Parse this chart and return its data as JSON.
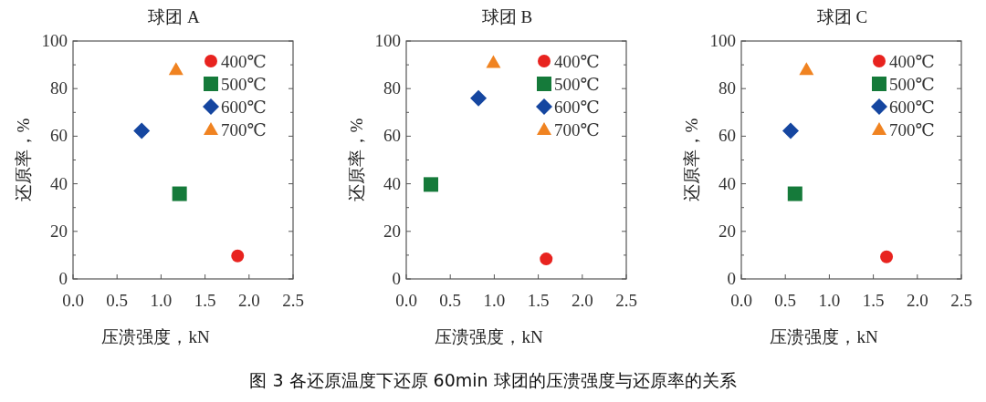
{
  "chart_data": [
    {
      "type": "scatter",
      "title": "球团 A",
      "xlabel": "压溃强度，kN",
      "ylabel": "还原率，%",
      "legend": "top right",
      "xlim": [
        0,
        2.5
      ],
      "ylim": [
        0,
        100
      ],
      "xticks": [
        {
          "value": 0,
          "label": "0.0"
        },
        0.5,
        {
          "value": 1,
          "label": "1.0"
        },
        1.5,
        {
          "value": 2,
          "label": "2.0"
        },
        2.5
      ],
      "yticks": [
        0,
        {
          "value": 10,
          "label": null
        },
        20,
        {
          "value": 30,
          "label": null
        },
        40,
        {
          "value": 50,
          "label": null
        },
        60,
        {
          "value": 70,
          "label": null
        },
        80,
        {
          "value": 90,
          "label": null
        },
        100
      ],
      "series": [
        {
          "name": "400℃",
          "color": "#e8231f",
          "marker": "circle",
          "x": [
            1.87
          ],
          "values": [
            9.7
          ]
        },
        {
          "name": "500℃",
          "color": "#157a3a",
          "marker": "square",
          "x": [
            1.21
          ],
          "values": [
            35.8
          ]
        },
        {
          "name": "600℃",
          "color": "#1546a0",
          "marker": "diamond",
          "x": [
            0.78
          ],
          "values": [
            62.3
          ]
        },
        {
          "name": "700℃",
          "color": "#f08321",
          "marker": "triangle",
          "x": [
            1.17
          ],
          "values": [
            88
          ]
        }
      ],
      "annotations": [
        "图 3   各还原温度下还原 60min 球团的压溃强度与还原率的关系"
      ]
    },
    {
      "type": "scatter",
      "title": "球团 B",
      "xlabel": "压溃强度，kN",
      "ylabel": "还原率，%",
      "legend": "top right",
      "xlim": [
        0,
        2.5
      ],
      "ylim": [
        0,
        100
      ],
      "xticks": [
        {
          "value": 0,
          "label": "0.0"
        },
        0.5,
        {
          "value": 1,
          "label": "1.0"
        },
        1.5,
        {
          "value": 2,
          "label": "2.0"
        },
        2.5
      ],
      "yticks": [
        0,
        {
          "value": 10,
          "label": null
        },
        20,
        {
          "value": 30,
          "label": null
        },
        40,
        {
          "value": 50,
          "label": null
        },
        60,
        {
          "value": 70,
          "label": null
        },
        80,
        {
          "value": 90,
          "label": null
        },
        100
      ],
      "series": [
        {
          "name": "400℃",
          "color": "#e8231f",
          "marker": "circle",
          "x": [
            1.59
          ],
          "values": [
            8.4
          ]
        },
        {
          "name": "500℃",
          "color": "#157a3a",
          "marker": "square",
          "x": [
            0.28
          ],
          "values": [
            39.7
          ]
        },
        {
          "name": "600℃",
          "color": "#1546a0",
          "marker": "diamond",
          "x": [
            0.82
          ],
          "values": [
            76
          ]
        },
        {
          "name": "700℃",
          "color": "#f08321",
          "marker": "triangle",
          "x": [
            0.99
          ],
          "values": [
            91
          ]
        }
      ]
    },
    {
      "type": "scatter",
      "title": "球团 C",
      "xlabel": "压溃强度，kN",
      "ylabel": "还原率，%",
      "legend": "top right",
      "xlim": [
        0,
        2.5
      ],
      "ylim": [
        0,
        100
      ],
      "xticks": [
        {
          "value": 0,
          "label": "0.0"
        },
        0.5,
        {
          "value": 1,
          "label": "1.0"
        },
        1.5,
        {
          "value": 2,
          "label": "2.0"
        },
        2.5
      ],
      "yticks": [
        0,
        {
          "value": 10,
          "label": null
        },
        20,
        {
          "value": 30,
          "label": null
        },
        40,
        {
          "value": 50,
          "label": null
        },
        60,
        {
          "value": 70,
          "label": null
        },
        80,
        {
          "value": 90,
          "label": null
        },
        100
      ],
      "series": [
        {
          "name": "400℃",
          "color": "#e8231f",
          "marker": "circle",
          "x": [
            1.65
          ],
          "values": [
            9.3
          ]
        },
        {
          "name": "500℃",
          "color": "#157a3a",
          "marker": "square",
          "x": [
            0.61
          ],
          "values": [
            35.8
          ]
        },
        {
          "name": "600℃",
          "color": "#1546a0",
          "marker": "diamond",
          "x": [
            0.56
          ],
          "values": [
            62.3
          ]
        },
        {
          "name": "700℃",
          "color": "#f08321",
          "marker": "triangle",
          "x": [
            0.74
          ],
          "values": [
            88
          ]
        }
      ]
    }
  ]
}
